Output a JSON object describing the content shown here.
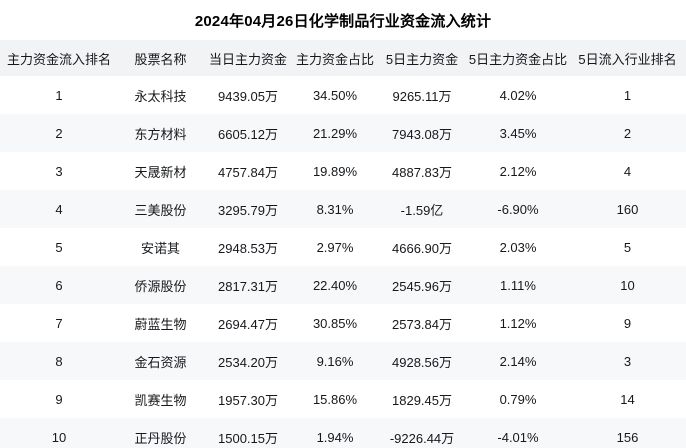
{
  "chart_data": {
    "type": "table",
    "title": "2024年04月26日化学制品行业资金流入统计",
    "columns": [
      "主力资金流入排名",
      "股票名称",
      "当日主力资金",
      "主力资金占比",
      "5日主力资金",
      "5日主力资金占比",
      "5日流入行业排名"
    ],
    "rows": [
      [
        "1",
        "永太科技",
        "9439.05万",
        "34.50%",
        "9265.11万",
        "4.02%",
        "1"
      ],
      [
        "2",
        "东方材料",
        "6605.12万",
        "21.29%",
        "7943.08万",
        "3.45%",
        "2"
      ],
      [
        "3",
        "天晟新材",
        "4757.84万",
        "19.89%",
        "4887.83万",
        "2.12%",
        "4"
      ],
      [
        "4",
        "三美股份",
        "3295.79万",
        "8.31%",
        "-1.59亿",
        "-6.90%",
        "160"
      ],
      [
        "5",
        "安诺其",
        "2948.53万",
        "2.97%",
        "4666.90万",
        "2.03%",
        "5"
      ],
      [
        "6",
        "侨源股份",
        "2817.31万",
        "22.40%",
        "2545.96万",
        "1.11%",
        "10"
      ],
      [
        "7",
        "蔚蓝生物",
        "2694.47万",
        "30.85%",
        "2573.84万",
        "1.12%",
        "9"
      ],
      [
        "8",
        "金石资源",
        "2534.20万",
        "9.16%",
        "4928.56万",
        "2.14%",
        "3"
      ],
      [
        "9",
        "凯赛生物",
        "1957.30万",
        "15.86%",
        "1829.45万",
        "0.79%",
        "14"
      ],
      [
        "10",
        "正丹股份",
        "1500.15万",
        "1.94%",
        "-9226.44万",
        "-4.01%",
        "156"
      ]
    ],
    "layout_hints": {
      "grid": "off",
      "zebra_striping": true,
      "alignment": "center"
    }
  },
  "colors": {
    "header_bg": "#f2f3f5",
    "stripe_bg": "#f7f8fa",
    "row_bg": "#ffffff",
    "text": "#15181c"
  }
}
